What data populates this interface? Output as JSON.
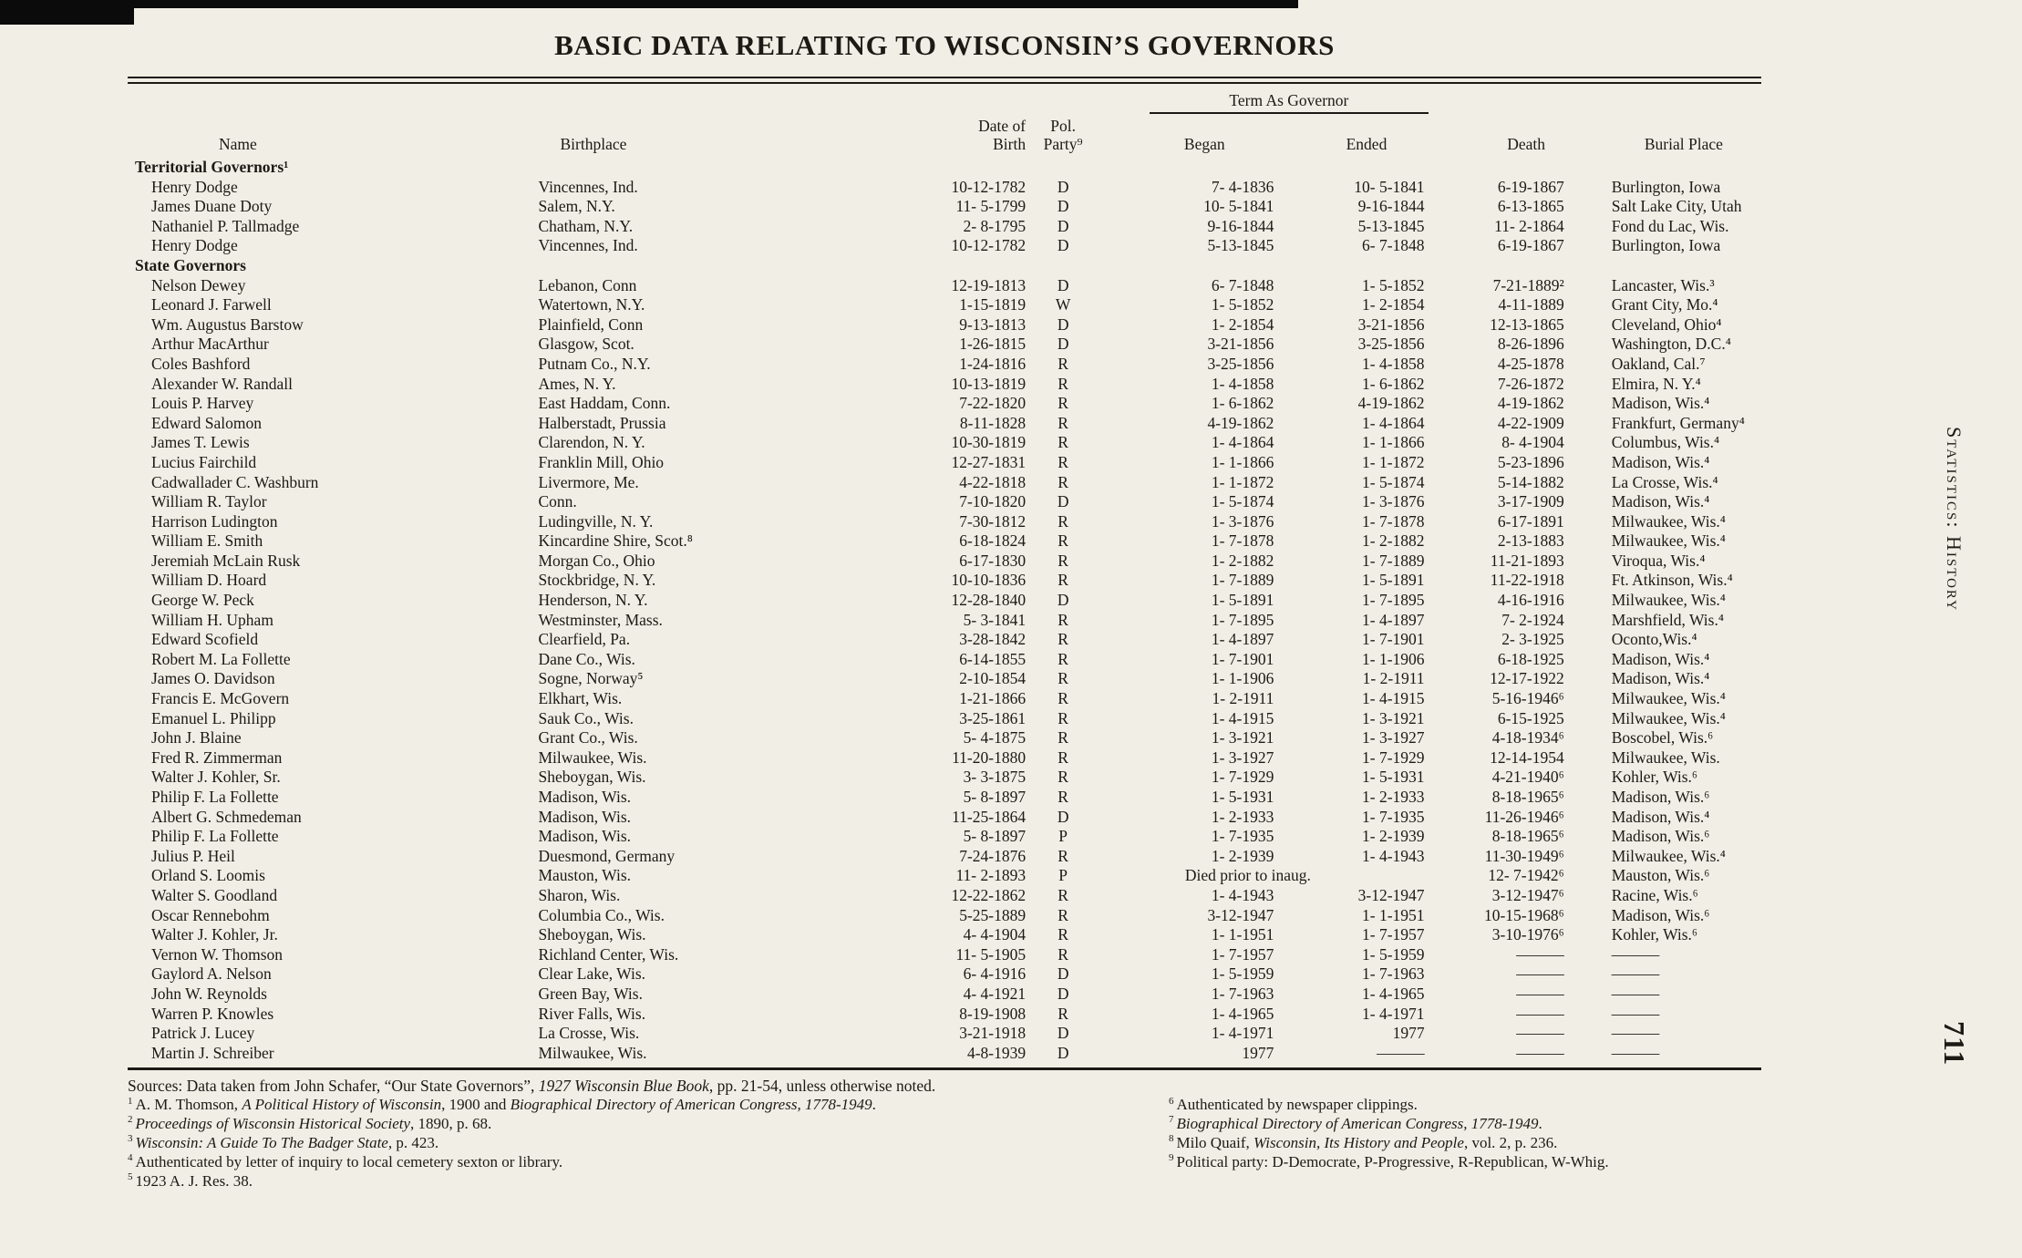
{
  "page": {
    "title": "BASIC DATA RELATING TO WISCONSIN’S GOVERNORS",
    "side_label": "Statistics: History",
    "page_number": "711"
  },
  "table": {
    "span_header": "Term As Governor",
    "columns": {
      "name": "Name",
      "birthplace": "Birthplace",
      "birth_line1": "Date of",
      "birth_line2": "Birth",
      "party_line1": "Pol.",
      "party_line2": "Party⁹",
      "began": "Began",
      "ended": "Ended",
      "death": "Death",
      "burial": "Burial Place"
    },
    "sections": [
      {
        "heading": "Territorial Governors¹",
        "rows": [
          [
            "Henry Dodge",
            "Vincennes, Ind.",
            "10-12-1782",
            "D",
            "7- 4-1836",
            "10- 5-1841",
            "6-19-1867",
            "Burlington, Iowa"
          ],
          [
            "James Duane Doty",
            "Salem, N.Y.",
            "11- 5-1799",
            "D",
            "10- 5-1841",
            "9-16-1844",
            "6-13-1865",
            "Salt Lake City, Utah"
          ],
          [
            "Nathaniel P. Tallmadge",
            "Chatham, N.Y.",
            "2- 8-1795",
            "D",
            "9-16-1844",
            "5-13-1845",
            "11- 2-1864",
            "Fond du Lac, Wis."
          ],
          [
            "Henry Dodge",
            "Vincennes, Ind.",
            "10-12-1782",
            "D",
            "5-13-1845",
            "6- 7-1848",
            "6-19-1867",
            "Burlington, Iowa"
          ]
        ]
      },
      {
        "heading": "State Governors",
        "rows": [
          [
            "Nelson Dewey",
            "Lebanon, Conn",
            "12-19-1813",
            "D",
            "6- 7-1848",
            "1- 5-1852",
            "7-21-1889²",
            "Lancaster, Wis.³"
          ],
          [
            "Leonard J. Farwell",
            "Watertown, N.Y.",
            "1-15-1819",
            "W",
            "1- 5-1852",
            "1- 2-1854",
            "4-11-1889",
            "Grant City, Mo.⁴"
          ],
          [
            "Wm. Augustus Barstow",
            "Plainfield, Conn",
            "9-13-1813",
            "D",
            "1- 2-1854",
            "3-21-1856",
            "12-13-1865",
            "Cleveland, Ohio⁴"
          ],
          [
            "Arthur MacArthur",
            "Glasgow, Scot.",
            "1-26-1815",
            "D",
            "3-21-1856",
            "3-25-1856",
            "8-26-1896",
            "Washington, D.C.⁴"
          ],
          [
            "Coles Bashford",
            "Putnam Co., N.Y.",
            "1-24-1816",
            "R",
            "3-25-1856",
            "1- 4-1858",
            "4-25-1878",
            "Oakland, Cal.⁷"
          ],
          [
            "Alexander W. Randall",
            "Ames, N. Y.",
            "10-13-1819",
            "R",
            "1- 4-1858",
            "1- 6-1862",
            "7-26-1872",
            "Elmira, N. Y.⁴"
          ],
          [
            "Louis P. Harvey",
            "East Haddam, Conn.",
            "7-22-1820",
            "R",
            "1- 6-1862",
            "4-19-1862",
            "4-19-1862",
            "Madison, Wis.⁴"
          ],
          [
            "Edward Salomon",
            "Halberstadt, Prussia",
            "8-11-1828",
            "R",
            "4-19-1862",
            "1- 4-1864",
            "4-22-1909",
            "Frankfurt, Germany⁴"
          ],
          [
            "James T. Lewis",
            "Clarendon, N. Y.",
            "10-30-1819",
            "R",
            "1- 4-1864",
            "1- 1-1866",
            "8- 4-1904",
            "Columbus, Wis.⁴"
          ],
          [
            "Lucius Fairchild",
            "Franklin Mill, Ohio",
            "12-27-1831",
            "R",
            "1- 1-1866",
            "1- 1-1872",
            "5-23-1896",
            "Madison, Wis.⁴"
          ],
          [
            "Cadwallader C. Washburn",
            "Livermore, Me.",
            "4-22-1818",
            "R",
            "1- 1-1872",
            "1- 5-1874",
            "5-14-1882",
            "La Crosse, Wis.⁴"
          ],
          [
            "William R. Taylor",
            "Conn.",
            "7-10-1820",
            "D",
            "1- 5-1874",
            "1- 3-1876",
            "3-17-1909",
            "Madison, Wis.⁴"
          ],
          [
            "Harrison Ludington",
            "Ludingville, N. Y.",
            "7-30-1812",
            "R",
            "1- 3-1876",
            "1- 7-1878",
            "6-17-1891",
            "Milwaukee, Wis.⁴"
          ],
          [
            "William E. Smith",
            "Kincardine Shire, Scot.⁸",
            "6-18-1824",
            "R",
            "1- 7-1878",
            "1- 2-1882",
            "2-13-1883",
            "Milwaukee, Wis.⁴"
          ],
          [
            "Jeremiah McLain Rusk",
            "Morgan Co., Ohio",
            "6-17-1830",
            "R",
            "1- 2-1882",
            "1- 7-1889",
            "11-21-1893",
            "Viroqua, Wis.⁴"
          ],
          [
            "William D. Hoard",
            "Stockbridge, N. Y.",
            "10-10-1836",
            "R",
            "1- 7-1889",
            "1- 5-1891",
            "11-22-1918",
            "Ft. Atkinson, Wis.⁴"
          ],
          [
            "George W. Peck",
            "Henderson, N. Y.",
            "12-28-1840",
            "D",
            "1- 5-1891",
            "1- 7-1895",
            "4-16-1916",
            "Milwaukee, Wis.⁴"
          ],
          [
            "William H. Upham",
            "Westminster, Mass.",
            "5- 3-1841",
            "R",
            "1- 7-1895",
            "1- 4-1897",
            "7- 2-1924",
            "Marshfield, Wis.⁴"
          ],
          [
            "Edward Scofield",
            "Clearfield, Pa.",
            "3-28-1842",
            "R",
            "1- 4-1897",
            "1- 7-1901",
            "2- 3-1925",
            "Oconto,Wis.⁴"
          ],
          [
            "Robert M. La Follette",
            "Dane Co., Wis.",
            "6-14-1855",
            "R",
            "1- 7-1901",
            "1- 1-1906",
            "6-18-1925",
            "Madison, Wis.⁴"
          ],
          [
            "James O. Davidson",
            "Sogne, Norway⁵",
            "2-10-1854",
            "R",
            "1- 1-1906",
            "1- 2-1911",
            "12-17-1922",
            "Madison, Wis.⁴"
          ],
          [
            "Francis E. McGovern",
            "Elkhart, Wis.",
            "1-21-1866",
            "R",
            "1- 2-1911",
            "1- 4-1915",
            "5-16-1946⁶",
            "Milwaukee, Wis.⁴"
          ],
          [
            "Emanuel L. Philipp",
            "Sauk Co., Wis.",
            "3-25-1861",
            "R",
            "1- 4-1915",
            "1- 3-1921",
            "6-15-1925",
            "Milwaukee, Wis.⁴"
          ],
          [
            "John J. Blaine",
            "Grant Co., Wis.",
            "5- 4-1875",
            "R",
            "1- 3-1921",
            "1- 3-1927",
            "4-18-1934⁶",
            "Boscobel, Wis.⁶"
          ],
          [
            "Fred R. Zimmerman",
            "Milwaukee, Wis.",
            "11-20-1880",
            "R",
            "1- 3-1927",
            "1- 7-1929",
            "12-14-1954",
            "Milwaukee, Wis."
          ],
          [
            "Walter J. Kohler, Sr.",
            "Sheboygan, Wis.",
            "3- 3-1875",
            "R",
            "1- 7-1929",
            "1- 5-1931",
            "4-21-1940⁶",
            "Kohler, Wis.⁶"
          ],
          [
            "Philip F. La Follette",
            "Madison, Wis.",
            "5- 8-1897",
            "R",
            "1- 5-1931",
            "1- 2-1933",
            "8-18-1965⁶",
            "Madison, Wis.⁶"
          ],
          [
            "Albert G. Schmedeman",
            "Madison, Wis.",
            "11-25-1864",
            "D",
            "1- 2-1933",
            "1- 7-1935",
            "11-26-1946⁶",
            "Madison, Wis.⁴"
          ],
          [
            "Philip F. La Follette",
            "Madison, Wis.",
            "5- 8-1897",
            "P",
            "1- 7-1935",
            "1- 2-1939",
            "8-18-1965⁶",
            "Madison, Wis.⁶"
          ],
          [
            "Julius P. Heil",
            "Duesmond, Germany",
            "7-24-1876",
            "R",
            "1- 2-1939",
            "1- 4-1943",
            "11-30-1949⁶",
            "Milwaukee, Wis.⁴"
          ],
          [
            "Orland S. Loomis",
            "Mauston, Wis.",
            "11- 2-1893",
            "P",
            "Died prior to inaug.",
            null,
            "12- 7-1942⁶",
            "Mauston, Wis.⁶"
          ],
          [
            "Walter S. Goodland",
            "Sharon, Wis.",
            "12-22-1862",
            "R",
            "1- 4-1943",
            "3-12-1947",
            "3-12-1947⁶",
            "Racine, Wis.⁶"
          ],
          [
            "Oscar Rennebohm",
            "Columbia Co., Wis.",
            "5-25-1889",
            "R",
            "3-12-1947",
            "1- 1-1951",
            "10-15-1968⁶",
            "Madison, Wis.⁶"
          ],
          [
            "Walter J. Kohler, Jr.",
            "Sheboygan, Wis.",
            "4- 4-1904",
            "R",
            "1- 1-1951",
            "1- 7-1957",
            "3-10-1976⁶",
            "Kohler, Wis.⁶"
          ],
          [
            "Vernon W. Thomson",
            "Richland Center, Wis.",
            "11- 5-1905",
            "R",
            "1- 7-1957",
            "1- 5-1959",
            "———",
            "———"
          ],
          [
            "Gaylord A. Nelson",
            "Clear Lake, Wis.",
            "6- 4-1916",
            "D",
            "1- 5-1959",
            "1- 7-1963",
            "———",
            "———"
          ],
          [
            "John W. Reynolds",
            "Green Bay, Wis.",
            "4- 4-1921",
            "D",
            "1- 7-1963",
            "1- 4-1965",
            "———",
            "———"
          ],
          [
            "Warren P. Knowles",
            "River Falls, Wis.",
            "8-19-1908",
            "R",
            "1- 4-1965",
            "1- 4-1971",
            "———",
            "———"
          ],
          [
            "Patrick J. Lucey",
            "La Crosse, Wis.",
            "3-21-1918",
            "D",
            "1- 4-1971",
            "1977",
            "———",
            "———"
          ],
          [
            "Martin J. Schreiber",
            "Milwaukee, Wis.",
            "4-8-1939",
            "D",
            "1977",
            "———",
            "———",
            "———"
          ]
        ]
      }
    ]
  },
  "footnotes": {
    "sources_segs": [
      {
        "t": "Sources: Data taken from John Schafer, “Our State Governors”, "
      },
      {
        "t": "1927 Wisconsin Blue Book",
        "i": true
      },
      {
        "t": ", pp. 21-54, unless otherwise noted."
      }
    ],
    "left": [
      {
        "sup": "1",
        "segs": [
          {
            "t": "A. M. Thomson, "
          },
          {
            "t": "A Political History of Wisconsin",
            "i": true
          },
          {
            "t": ", 1900 and "
          },
          {
            "t": "Biographical Directory of American Congress, 1778-1949",
            "i": true
          },
          {
            "t": "."
          }
        ]
      },
      {
        "sup": "2",
        "segs": [
          {
            "t": "Proceedings of Wisconsin Historical Society",
            "i": true
          },
          {
            "t": ", 1890, p. 68."
          }
        ]
      },
      {
        "sup": "3",
        "segs": [
          {
            "t": "Wisconsin: A Guide To The Badger State",
            "i": true
          },
          {
            "t": ", p. 423."
          }
        ]
      },
      {
        "sup": "4",
        "segs": [
          {
            "t": "Authenticated by letter of inquiry to local cemetery sexton or library."
          }
        ]
      },
      {
        "sup": "5",
        "segs": [
          {
            "t": "1923 A. J. Res. 38."
          }
        ]
      }
    ],
    "right": [
      {
        "sup": "6",
        "segs": [
          {
            "t": "Authenticated by newspaper clippings."
          }
        ]
      },
      {
        "sup": "7",
        "segs": [
          {
            "t": "Biographical Directory of American Congress, 1778-1949",
            "i": true
          },
          {
            "t": "."
          }
        ]
      },
      {
        "sup": "8",
        "segs": [
          {
            "t": "Milo Quaif, "
          },
          {
            "t": "Wisconsin, Its History and People",
            "i": true
          },
          {
            "t": ", vol. 2, p. 236."
          }
        ]
      },
      {
        "sup": "9",
        "segs": [
          {
            "t": "Political party: D-Democrate, P-Progressive, R-Republican, W-Whig."
          }
        ]
      }
    ]
  }
}
